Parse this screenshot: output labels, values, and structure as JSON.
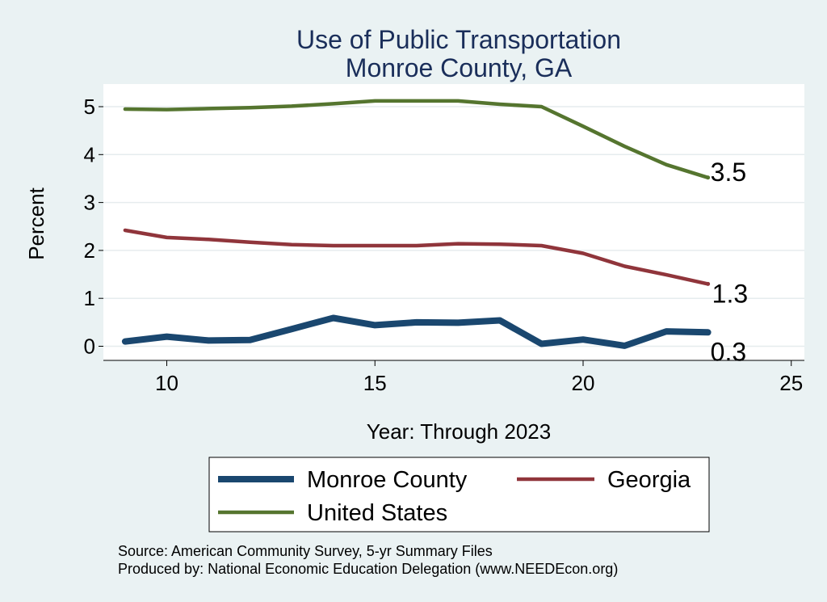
{
  "chart_data": {
    "type": "line",
    "title": "Use of Public Transportation",
    "subtitle": "Monroe County, GA",
    "xlabel": "Year: Through 2023",
    "ylabel": "Percent",
    "xlim": [
      9,
      25
    ],
    "ylim": [
      0,
      5.2
    ],
    "x_ticks": [
      10,
      15,
      20,
      25
    ],
    "y_ticks": [
      0,
      1,
      2,
      3,
      4,
      5
    ],
    "grid": true,
    "legend_position": "bottom",
    "series": [
      {
        "name": "Monroe County",
        "color": "#1a476f",
        "x": [
          9,
          10,
          11,
          12,
          13,
          14,
          15,
          16,
          17,
          18,
          19,
          20,
          21,
          22,
          23
        ],
        "values": [
          0.1,
          0.2,
          0.12,
          0.13,
          0.36,
          0.59,
          0.44,
          0.5,
          0.49,
          0.54,
          0.05,
          0.14,
          0.01,
          0.31,
          0.29
        ],
        "end_label": "0.3"
      },
      {
        "name": "Georgia",
        "color": "#90353b",
        "x": [
          9,
          10,
          11,
          12,
          13,
          14,
          15,
          16,
          17,
          18,
          19,
          20,
          21,
          22,
          23
        ],
        "values": [
          2.42,
          2.27,
          2.23,
          2.17,
          2.12,
          2.1,
          2.1,
          2.1,
          2.14,
          2.13,
          2.1,
          1.94,
          1.67,
          1.49,
          1.3
        ],
        "end_label": "1.3"
      },
      {
        "name": "United States",
        "color": "#55752f",
        "x": [
          9,
          10,
          11,
          12,
          13,
          14,
          15,
          16,
          17,
          18,
          19,
          20,
          21,
          22,
          23
        ],
        "values": [
          4.95,
          4.94,
          4.96,
          4.98,
          5.01,
          5.06,
          5.12,
          5.12,
          5.12,
          5.05,
          5.0,
          4.59,
          4.17,
          3.79,
          3.52
        ],
        "end_label": "3.5"
      }
    ]
  },
  "footer": {
    "source": "Source: American Community Survey, 5-yr Summary Files",
    "produced_by": "Produced by: National Economic Education Delegation (www.NEEDEcon.org)"
  }
}
